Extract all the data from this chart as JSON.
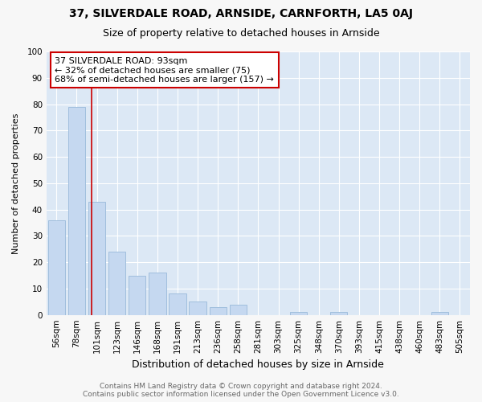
{
  "title1": "37, SILVERDALE ROAD, ARNSIDE, CARNFORTH, LA5 0AJ",
  "title2": "Size of property relative to detached houses in Arnside",
  "xlabel": "Distribution of detached houses by size in Arnside",
  "ylabel": "Number of detached properties",
  "categories": [
    "56sqm",
    "78sqm",
    "101sqm",
    "123sqm",
    "146sqm",
    "168sqm",
    "191sqm",
    "213sqm",
    "236sqm",
    "258sqm",
    "281sqm",
    "303sqm",
    "325sqm",
    "348sqm",
    "370sqm",
    "393sqm",
    "415sqm",
    "438sqm",
    "460sqm",
    "483sqm",
    "505sqm"
  ],
  "values": [
    36,
    79,
    43,
    24,
    15,
    16,
    8,
    5,
    3,
    4,
    0,
    0,
    1,
    0,
    1,
    0,
    0,
    0,
    0,
    1,
    0
  ],
  "bar_color": "#c5d8f0",
  "bar_edge_color": "#a0bedd",
  "vline_x_float": 1.73,
  "vline_color": "#cc0000",
  "annotation_text": "37 SILVERDALE ROAD: 93sqm\n← 32% of detached houses are smaller (75)\n68% of semi-detached houses are larger (157) →",
  "annotation_box_color": "#ffffff",
  "annotation_box_edge_color": "#cc0000",
  "ylim": [
    0,
    100
  ],
  "yticks": [
    0,
    10,
    20,
    30,
    40,
    50,
    60,
    70,
    80,
    90,
    100
  ],
  "fig_bg_color": "#f7f7f7",
  "plot_bg_color": "#dce8f5",
  "footer_text": "Contains HM Land Registry data © Crown copyright and database right 2024.\nContains public sector information licensed under the Open Government Licence v3.0.",
  "title1_fontsize": 10,
  "title2_fontsize": 9,
  "xlabel_fontsize": 9,
  "ylabel_fontsize": 8,
  "tick_fontsize": 7.5,
  "footer_fontsize": 6.5,
  "ann_fontsize": 8
}
